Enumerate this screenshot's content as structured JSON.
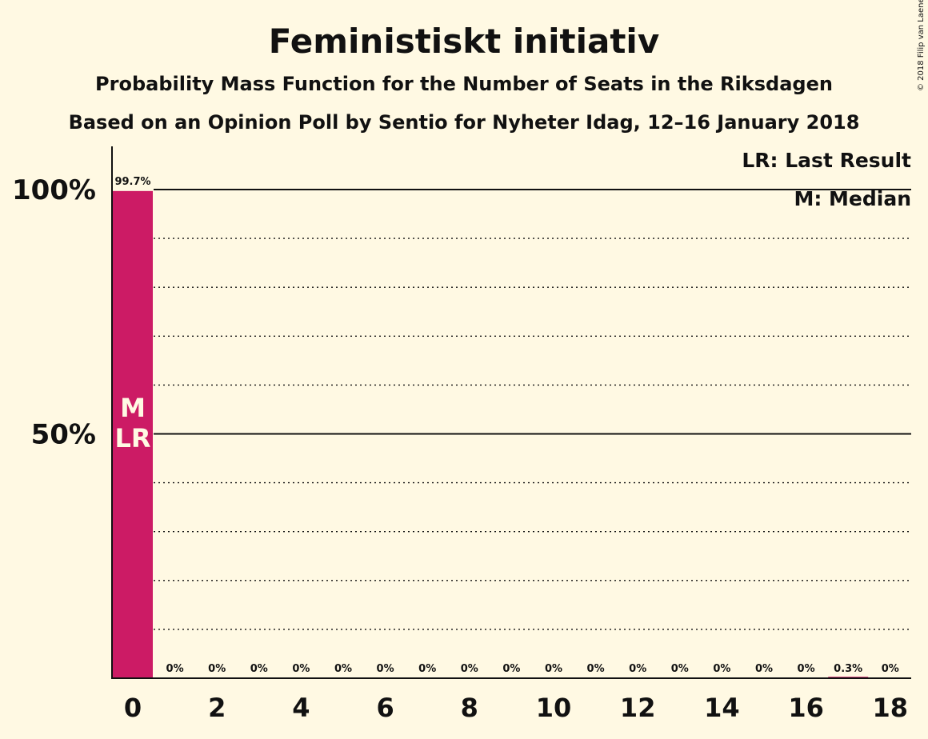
{
  "chart_data": {
    "type": "bar",
    "title": "Feministiskt initiativ",
    "subtitle_1": "Probability Mass Function for the Number of Seats in the Riksdagen",
    "subtitle_2": "Based on an Opinion Poll by Sentio for Nyheter Idag, 12–16 January 2018",
    "copyright": "© 2018 Filip van Laenen",
    "categories": [
      0,
      1,
      2,
      3,
      4,
      5,
      6,
      7,
      8,
      9,
      10,
      11,
      12,
      13,
      14,
      15,
      16,
      17,
      18
    ],
    "values": [
      99.7,
      0,
      0,
      0,
      0,
      0,
      0,
      0,
      0,
      0,
      0,
      0,
      0,
      0,
      0,
      0,
      0,
      0.3,
      0
    ],
    "value_labels": [
      "99.7%",
      "0%",
      "0%",
      "0%",
      "0%",
      "0%",
      "0%",
      "0%",
      "0%",
      "0%",
      "0%",
      "0%",
      "0%",
      "0%",
      "0%",
      "0%",
      "0%",
      "0.3%",
      "0%"
    ],
    "x_tick_labels": [
      "0",
      "2",
      "4",
      "6",
      "8",
      "10",
      "12",
      "14",
      "16",
      "18"
    ],
    "x_tick_values": [
      0,
      2,
      4,
      6,
      8,
      10,
      12,
      14,
      16,
      18
    ],
    "y_tick_labels": [
      "50%",
      "100%"
    ],
    "y_tick_values": [
      50,
      100
    ],
    "ylim": [
      0,
      110
    ],
    "grid": "dotted every 10%",
    "median_seat": 0,
    "last_result_seat": 0,
    "bar_markers": [
      "M",
      "LR"
    ],
    "legend": [
      "LR: Last Result",
      "M: Median"
    ],
    "legend_placement": "top-right",
    "bar_color": "#CC1B65"
  }
}
